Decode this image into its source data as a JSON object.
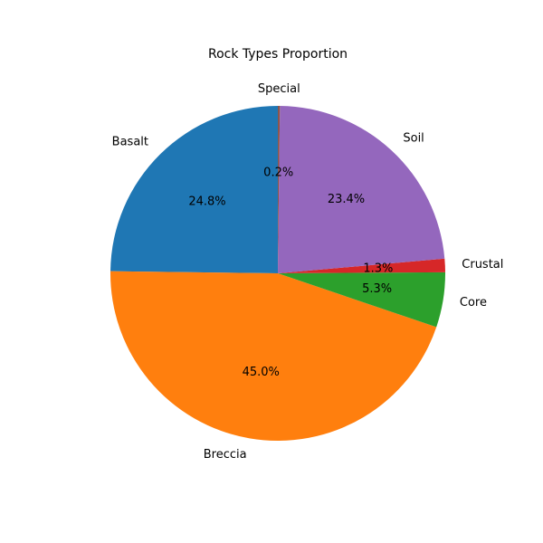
{
  "chart_data": {
    "type": "pie",
    "title": "Rock Types Proportion",
    "start_angle_deg": 90,
    "direction": "counterclockwise",
    "slices": [
      {
        "label": "Basalt",
        "value": 24.8,
        "pct_label": "24.8%",
        "color": "#1f77b4"
      },
      {
        "label": "Breccia",
        "value": 45.0,
        "pct_label": "45.0%",
        "color": "#ff7f0e"
      },
      {
        "label": "Core",
        "value": 5.3,
        "pct_label": "5.3%",
        "color": "#2ca02c"
      },
      {
        "label": "Crustal",
        "value": 1.3,
        "pct_label": "1.3%",
        "color": "#d62728"
      },
      {
        "label": "Soil",
        "value": 23.4,
        "pct_label": "23.4%",
        "color": "#9467bd"
      },
      {
        "label": "Special",
        "value": 0.2,
        "pct_label": "0.2%",
        "color": "#8c564b"
      }
    ]
  }
}
